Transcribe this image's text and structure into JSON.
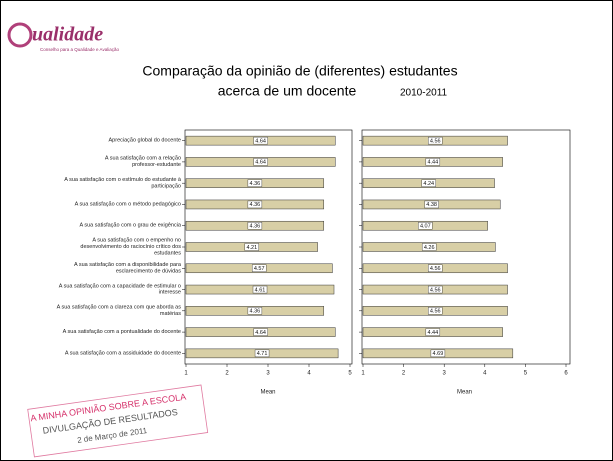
{
  "header": {
    "logo": "ualidade",
    "logo_subtitle": "Conselho para a Qualidade e Avaliação",
    "title_line1": "Comparação da opinião de (diferentes) estudantes",
    "title_line2": "acerca de um docente",
    "year": "2010-2011"
  },
  "stamp": {
    "line1": "A MINHA OPINIÃO SOBRE A ESCOLA",
    "line2": "DIVULGAÇÃO DE RESULTADOS",
    "line3": "2 de Março de 2011"
  },
  "chart_data": [
    {
      "type": "bar",
      "orientation": "horizontal",
      "xlabel": "Mean",
      "color": "#d8cfa6",
      "categories": [
        "Apreciação global do docente",
        "A sua satisfação com a relação professor-estudante",
        "A sua satisfação com o estímulo do estudante à participação",
        "A sua satisfação com o método pedagógico",
        "A sua satisfação com o grau de exigência",
        "A sua satisfação com o empenho no desenvolvimento do raciocínio crítico dos estudantes",
        "A sua satisfação com a disponibilidade para esclarecimento de dúvidas",
        "A sua satisfação com a capacidade de estimular o interesse",
        "A sua satisfação com a clareza com que aborda as matérias",
        "A sua satisfação com a pontualidade do docente",
        "A sua satisfação com a assiduidade do docente"
      ],
      "values": [
        4.64,
        4.64,
        4.36,
        4.36,
        4.36,
        4.21,
        4.57,
        4.61,
        4.36,
        4.64,
        4.71
      ],
      "xlim": [
        1,
        5
      ],
      "xticks": [
        1,
        2,
        3,
        4,
        5
      ]
    },
    {
      "type": "bar",
      "orientation": "horizontal",
      "xlabel": "Mean",
      "color": "#d8cfa6",
      "values": [
        4.56,
        4.44,
        4.24,
        4.38,
        4.07,
        4.26,
        4.56,
        4.56,
        4.56,
        4.44,
        4.69
      ],
      "xlim": [
        1,
        6
      ],
      "xticks": [
        1,
        2,
        3,
        4,
        5,
        6
      ]
    }
  ]
}
